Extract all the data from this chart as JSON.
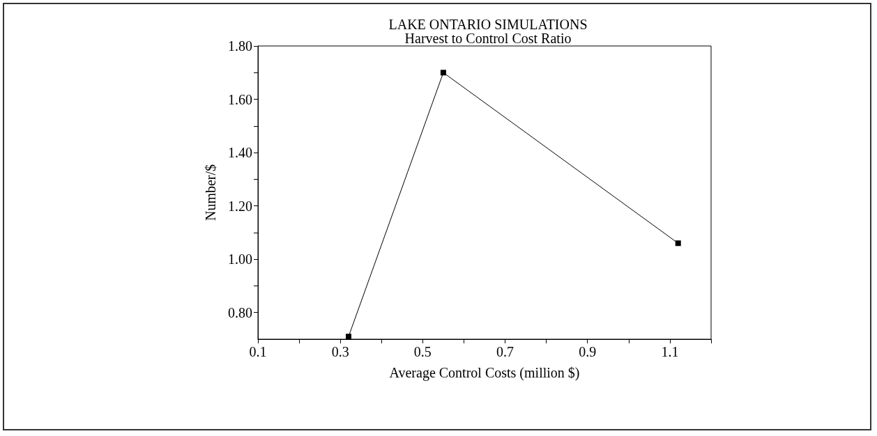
{
  "chart_data": {
    "type": "line",
    "title": "LAKE ONTARIO SIMULATIONS",
    "subtitle": "Harvest to Control Cost Ratio",
    "xlabel": "Average Control Costs (million $)",
    "ylabel": "Number/$",
    "x": [
      0.32,
      0.55,
      1.12
    ],
    "series": [
      {
        "color": "#000000",
        "values": [
          0.71,
          1.7,
          1.06
        ]
      }
    ],
    "xlim": [
      0.1,
      1.2
    ],
    "xticks": [
      0.1,
      {
        "value": 0.2,
        "label": null
      },
      0.3,
      {
        "value": 0.4,
        "label": null
      },
      0.5,
      {
        "value": 0.6,
        "label": null
      },
      0.7,
      {
        "value": 0.8,
        "label": null
      },
      0.9,
      {
        "value": 1.0,
        "label": null
      },
      1.1,
      {
        "value": 1.2,
        "label": null
      }
    ],
    "ylim": [
      0.7,
      1.8
    ],
    "yticks": [
      {
        "value": 0.8,
        "label": "0.80"
      },
      {
        "value": 0.9,
        "label": null
      },
      {
        "value": 1.0,
        "label": "1.00"
      },
      {
        "value": 1.1,
        "label": null
      },
      {
        "value": 1.2,
        "label": "1.20"
      },
      {
        "value": 1.3,
        "label": null
      },
      {
        "value": 1.4,
        "label": "1.40"
      },
      {
        "value": 1.5,
        "label": null
      },
      {
        "value": 1.6,
        "label": "1.60"
      },
      {
        "value": 1.7,
        "label": null
      },
      {
        "value": 1.8,
        "label": "1.80"
      }
    ],
    "grid": false,
    "marker": "square",
    "line_style": "solid"
  }
}
